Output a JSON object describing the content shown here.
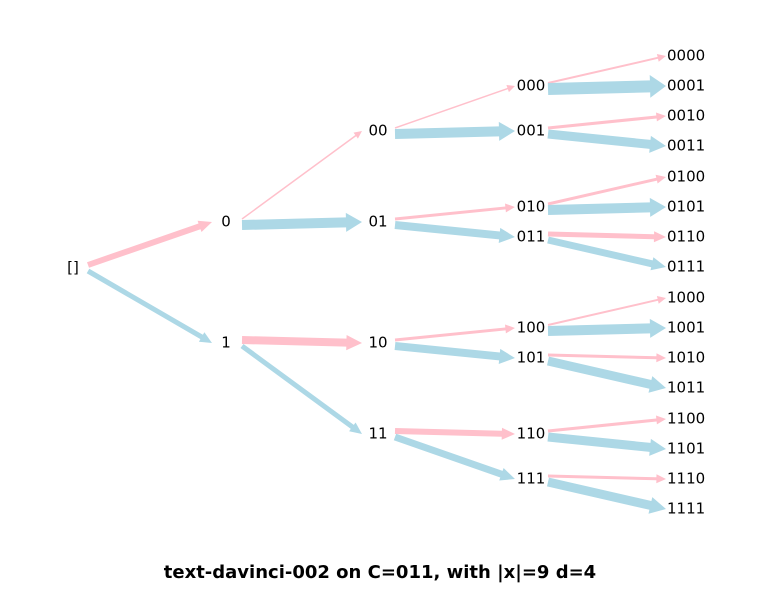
{
  "tree": {
    "nodes": [
      "[]",
      "0",
      "1",
      "00",
      "01",
      "10",
      "11",
      "000",
      "001",
      "010",
      "011",
      "100",
      "101",
      "110",
      "111",
      "0000",
      "0001",
      "0010",
      "0011",
      "0100",
      "0101",
      "0110",
      "0111",
      "1000",
      "1001",
      "1010",
      "1011",
      "1100",
      "1101",
      "1110",
      "1111"
    ]
  },
  "caption": "text-davinci-002 on C=011, with |x|=9  d=4"
}
